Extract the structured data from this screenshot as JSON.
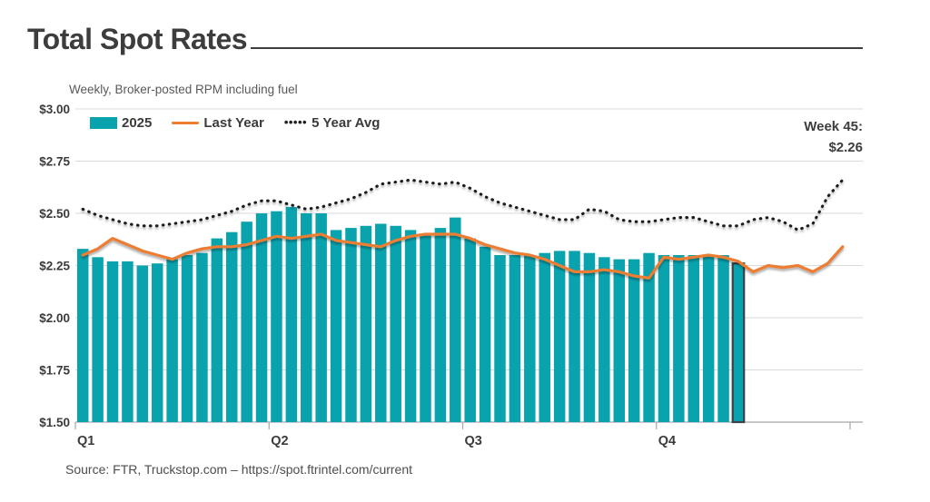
{
  "header": {
    "title": "Total Spot Rates",
    "subtitle": "Weekly, Broker-posted RPM including fuel"
  },
  "annotation": {
    "line1": "Week 45:",
    "line2": "$2.26"
  },
  "source": "Source: FTR, Truckstop.com – https://spot.ftrintel.com/current",
  "colors": {
    "teal": "#09a3ae",
    "orange": "#ed7d31",
    "dotted": "#1f1f1f",
    "highlight_outline": "#3a4149",
    "grid": "#d9d9d9",
    "baseline": "#a6a6a6",
    "text_dark": "#3b3b3b"
  },
  "chart_data": {
    "type": "bar",
    "subtype": "combo-bar-line",
    "x_unit": "week",
    "weeks_total": 52,
    "quarter_labels": [
      "Q1",
      "Q2",
      "Q3",
      "Q4"
    ],
    "y_tick_labels": [
      "$3.00",
      "$2.75",
      "$2.50",
      "$2.25",
      "$2.00",
      "$1.75",
      "$1.50"
    ],
    "ylim": [
      1.5,
      3.0
    ],
    "grid": true,
    "legend_position": "top-left",
    "series": [
      {
        "name": "2025",
        "type": "bar",
        "color": "#09a3ae",
        "values": [
          2.33,
          2.29,
          2.27,
          2.27,
          2.25,
          2.26,
          2.28,
          2.3,
          2.31,
          2.38,
          2.41,
          2.46,
          2.5,
          2.51,
          2.53,
          2.5,
          2.5,
          2.42,
          2.43,
          2.44,
          2.45,
          2.44,
          2.42,
          2.4,
          2.43,
          2.48,
          2.38,
          2.34,
          2.3,
          2.3,
          2.3,
          2.31,
          2.32,
          2.32,
          2.31,
          2.29,
          2.28,
          2.28,
          2.31,
          2.3,
          2.3,
          2.3,
          2.3,
          2.3,
          2.26
        ]
      },
      {
        "name": "Last Year",
        "type": "line",
        "color": "#ed7d31",
        "values": [
          2.3,
          2.33,
          2.38,
          2.35,
          2.32,
          2.3,
          2.28,
          2.31,
          2.33,
          2.34,
          2.34,
          2.35,
          2.37,
          2.39,
          2.38,
          2.39,
          2.4,
          2.37,
          2.36,
          2.35,
          2.34,
          2.37,
          2.39,
          2.4,
          2.4,
          2.4,
          2.38,
          2.35,
          2.33,
          2.31,
          2.3,
          2.28,
          2.25,
          2.22,
          2.22,
          2.23,
          2.22,
          2.2,
          2.19,
          2.29,
          2.28,
          2.29,
          2.3,
          2.29,
          2.27,
          2.22,
          2.25,
          2.24,
          2.25,
          2.22,
          2.26,
          2.34
        ]
      },
      {
        "name": "5 Year Avg",
        "type": "dotted-line",
        "color": "#1f1f1f",
        "values": [
          2.52,
          2.49,
          2.47,
          2.45,
          2.44,
          2.44,
          2.45,
          2.46,
          2.47,
          2.49,
          2.51,
          2.54,
          2.56,
          2.56,
          2.54,
          2.52,
          2.53,
          2.55,
          2.57,
          2.6,
          2.64,
          2.65,
          2.66,
          2.65,
          2.64,
          2.65,
          2.62,
          2.58,
          2.55,
          2.53,
          2.51,
          2.49,
          2.47,
          2.47,
          2.52,
          2.51,
          2.47,
          2.46,
          2.46,
          2.47,
          2.48,
          2.48,
          2.46,
          2.44,
          2.44,
          2.47,
          2.48,
          2.46,
          2.42,
          2.45,
          2.58,
          2.66
        ]
      }
    ],
    "highlight": {
      "week": 45,
      "value": 2.26
    }
  }
}
